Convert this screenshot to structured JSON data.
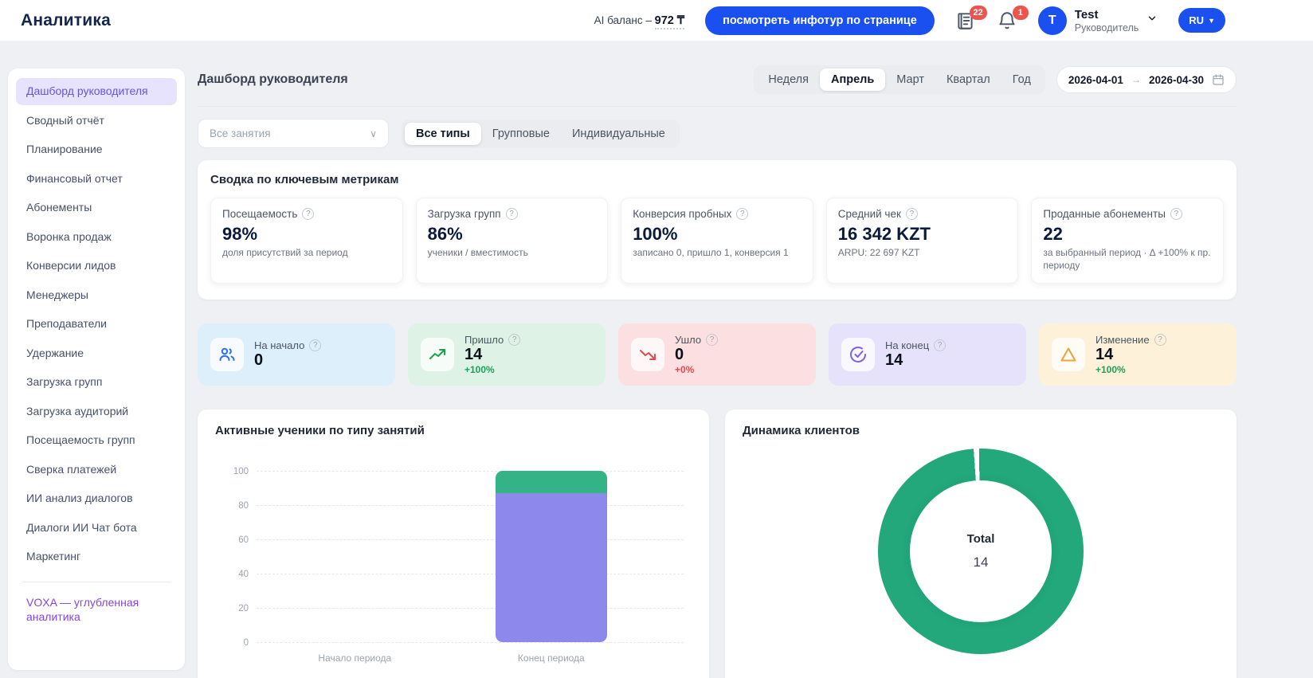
{
  "colors": {
    "brand_blue": "#1a50ef",
    "badge_red": "#ef5350",
    "accent_purple": "#6356e0"
  },
  "header": {
    "logo": "Аналитика",
    "ai_balance_label": "AI баланс –",
    "ai_balance_value": "972 ₸",
    "infotour_button": "посмотреть инфотур по странице",
    "news_badge": "22",
    "bell_badge": "1",
    "avatar_letter": "T",
    "user_name": "Test",
    "user_role": "Руководитель",
    "lang": "RU"
  },
  "sidebar": {
    "items": [
      {
        "label": "Дашборд руководителя"
      },
      {
        "label": "Сводный отчёт"
      },
      {
        "label": "Планирование"
      },
      {
        "label": "Финансовый отчет"
      },
      {
        "label": "Абонементы"
      },
      {
        "label": "Воронка продаж"
      },
      {
        "label": "Конверсии лидов"
      },
      {
        "label": "Менеджеры"
      },
      {
        "label": "Преподаватели"
      },
      {
        "label": "Удержание"
      },
      {
        "label": "Загрузка групп"
      },
      {
        "label": "Загрузка аудиторий"
      },
      {
        "label": "Посещаемость групп"
      },
      {
        "label": "Сверка платежей"
      },
      {
        "label": "ИИ анализ диалогов"
      },
      {
        "label": "Диалоги ИИ Чат бота"
      },
      {
        "label": "Маркетинг"
      }
    ],
    "footer_link": "VOXA — углубленная аналитика"
  },
  "toolbar": {
    "page_title": "Дашборд руководителя",
    "period_tabs": [
      "Неделя",
      "Апрель",
      "Март",
      "Квартал",
      "Год"
    ],
    "active_period": "Апрель",
    "date_from": "2026-04-01",
    "date_arrow": "→",
    "date_to": "2026-04-30"
  },
  "filters": {
    "select_placeholder": "Все занятия",
    "type_tabs": [
      "Все типы",
      "Групповые",
      "Индивидуальные"
    ],
    "active_type": "Все типы"
  },
  "metrics": {
    "title": "Сводка по ключевым метрикам",
    "cards": [
      {
        "label": "Посещаемость",
        "value": "98%",
        "subtitle": "доля присутствий за период"
      },
      {
        "label": "Загрузка групп",
        "value": "86%",
        "subtitle": "ученики / вместимость"
      },
      {
        "label": "Конверсия пробных",
        "value": "100%",
        "subtitle": "записано 0, пришло 1, конверсия 1"
      },
      {
        "label": "Средний чек",
        "value": "16 342 KZT",
        "subtitle": "ARPU: 22 697 KZT"
      },
      {
        "label": "Проданные абонементы",
        "value": "22",
        "subtitle": "за выбранный период · Δ +100% к пр. периоду"
      }
    ]
  },
  "stats": [
    {
      "label": "На начало",
      "value": "0",
      "delta": "",
      "icon": "users-icon"
    },
    {
      "label": "Пришло",
      "value": "14",
      "delta": "+100%",
      "icon": "trend-up-icon"
    },
    {
      "label": "Ушло",
      "value": "0",
      "delta": "+0%",
      "icon": "trend-down-icon"
    },
    {
      "label": "На конец",
      "value": "14",
      "delta": "",
      "icon": "check-circle-icon"
    },
    {
      "label": "Изменение",
      "value": "14",
      "delta": "+100%",
      "icon": "delta-triangle-icon"
    }
  ],
  "chart_data": [
    {
      "type": "bar",
      "title": "Активные ученики по типу занятий",
      "categories": [
        "Начало периода",
        "Конец периода"
      ],
      "series": [
        {
          "name": "purple-segment",
          "color": "#8d88ec",
          "values": [
            0,
            87
          ]
        },
        {
          "name": "green-segment",
          "color": "#33b386",
          "values": [
            0,
            13
          ]
        }
      ],
      "stacked": true,
      "xlabel": "",
      "ylabel": "",
      "ylim": [
        0,
        100
      ],
      "yticks": [
        "100",
        "80",
        "60",
        "40",
        "20",
        "0"
      ],
      "grid": "dashed horizontal"
    },
    {
      "type": "pie",
      "title": "Динамика клиентов",
      "donut": true,
      "center_label": "Total",
      "center_value": "14",
      "segments": [
        {
          "label": "Total",
          "value": 14,
          "color": "#22a87a"
        }
      ],
      "legend": "none"
    }
  ]
}
